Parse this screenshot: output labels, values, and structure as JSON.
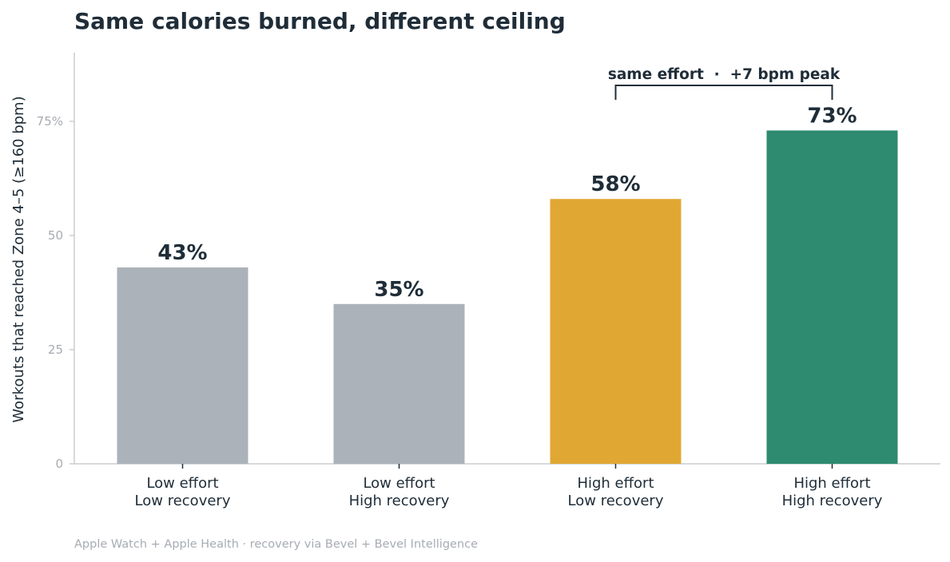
{
  "chart_data": {
    "type": "bar",
    "title": "Same calories burned, different ceiling",
    "ylabel": "Workouts that reached Zone 4–5 (≥160 bpm)",
    "xlabel": "",
    "ylim": [
      0,
      90
    ],
    "yticks": [
      {
        "value": 0,
        "label": "0"
      },
      {
        "value": 25,
        "label": "25"
      },
      {
        "value": 50,
        "label": "50"
      },
      {
        "value": 75,
        "label": "75%"
      }
    ],
    "categories": [
      [
        "Low effort",
        "Low recovery"
      ],
      [
        "Low effort",
        "High recovery"
      ],
      [
        "High effort",
        "Low recovery"
      ],
      [
        "High effort",
        "High recovery"
      ]
    ],
    "values": [
      43,
      35,
      58,
      73
    ],
    "value_labels": [
      "43%",
      "35%",
      "58%",
      "73%"
    ],
    "colors": [
      "#abb2b9",
      "#abb2b9",
      "#e0a832",
      "#2e8b6f"
    ],
    "grid": false,
    "annotation": {
      "text": "same effort  ·  +7 bpm peak",
      "from_category": 2,
      "to_category": 3
    }
  },
  "footer": {
    "source": "Apple Watch + Apple Health · recovery via Bevel + Bevel Intelligence"
  }
}
